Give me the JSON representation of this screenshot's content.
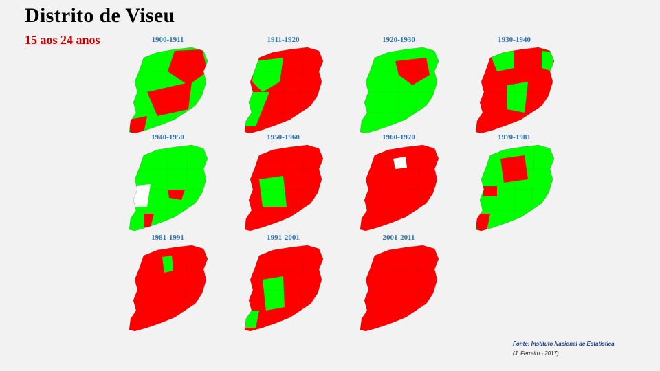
{
  "title": "Distrito de Viseu",
  "subtitle": " 15 aos 24 anos",
  "colors": {
    "increase": "#00ff00",
    "decrease": "#ff0000",
    "no_data": "#ffffff",
    "label_blue": "#2e75b6",
    "title_red": "#c00000"
  },
  "maps": [
    {
      "period": "1900-1911"
    },
    {
      "period": "1911-1920"
    },
    {
      "period": "1920-1930"
    },
    {
      "period": "1930-1940"
    },
    {
      "period": "1940-1950"
    },
    {
      "period": "1950-1960"
    },
    {
      "period": "1960-1970"
    },
    {
      "period": "1970-1981"
    },
    {
      "period": "1981-1991"
    },
    {
      "period": "1991-2001"
    },
    {
      "period": "2001-2011"
    }
  ],
  "source": "Fonte: Instituto Nacional de Estatística",
  "credit": "(J. Ferreiro - 2017)"
}
